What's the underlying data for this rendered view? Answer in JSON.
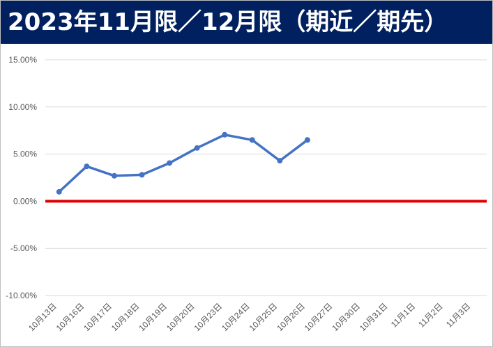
{
  "header": {
    "title": "2023年11月限／12月限（期近／期先）"
  },
  "colors": {
    "header_bg": "#002060",
    "line": "#4472c4",
    "zero_line": "#e00000",
    "grid": "#d9d9d9"
  },
  "chart_data": {
    "type": "line",
    "title": "2023年11月限／12月限（期近／期先）",
    "categories": [
      "10月13日",
      "10月16日",
      "10月17日",
      "10月18日",
      "10月19日",
      "10月20日",
      "10月23日",
      "10月24日",
      "10月25日",
      "10月26日",
      "10月27日",
      "10月30日",
      "10月31日",
      "11月1日",
      "11月2日",
      "11月3日"
    ],
    "series": [
      {
        "values": [
          1.0,
          3.7,
          2.7,
          2.8,
          4.05,
          5.65,
          7.05,
          6.5,
          4.3,
          6.5,
          null,
          null,
          null,
          null,
          null,
          null
        ]
      }
    ],
    "ylim": [
      -10,
      15
    ],
    "yticks": [
      "15.00%",
      "10.00%",
      "5.00%",
      "0.00%",
      "-5.00%",
      "-10.00%"
    ],
    "ytick_values": [
      15,
      10,
      5,
      0,
      -5,
      -10
    ],
    "reference_line": 0,
    "grid": true,
    "legend": "none"
  }
}
